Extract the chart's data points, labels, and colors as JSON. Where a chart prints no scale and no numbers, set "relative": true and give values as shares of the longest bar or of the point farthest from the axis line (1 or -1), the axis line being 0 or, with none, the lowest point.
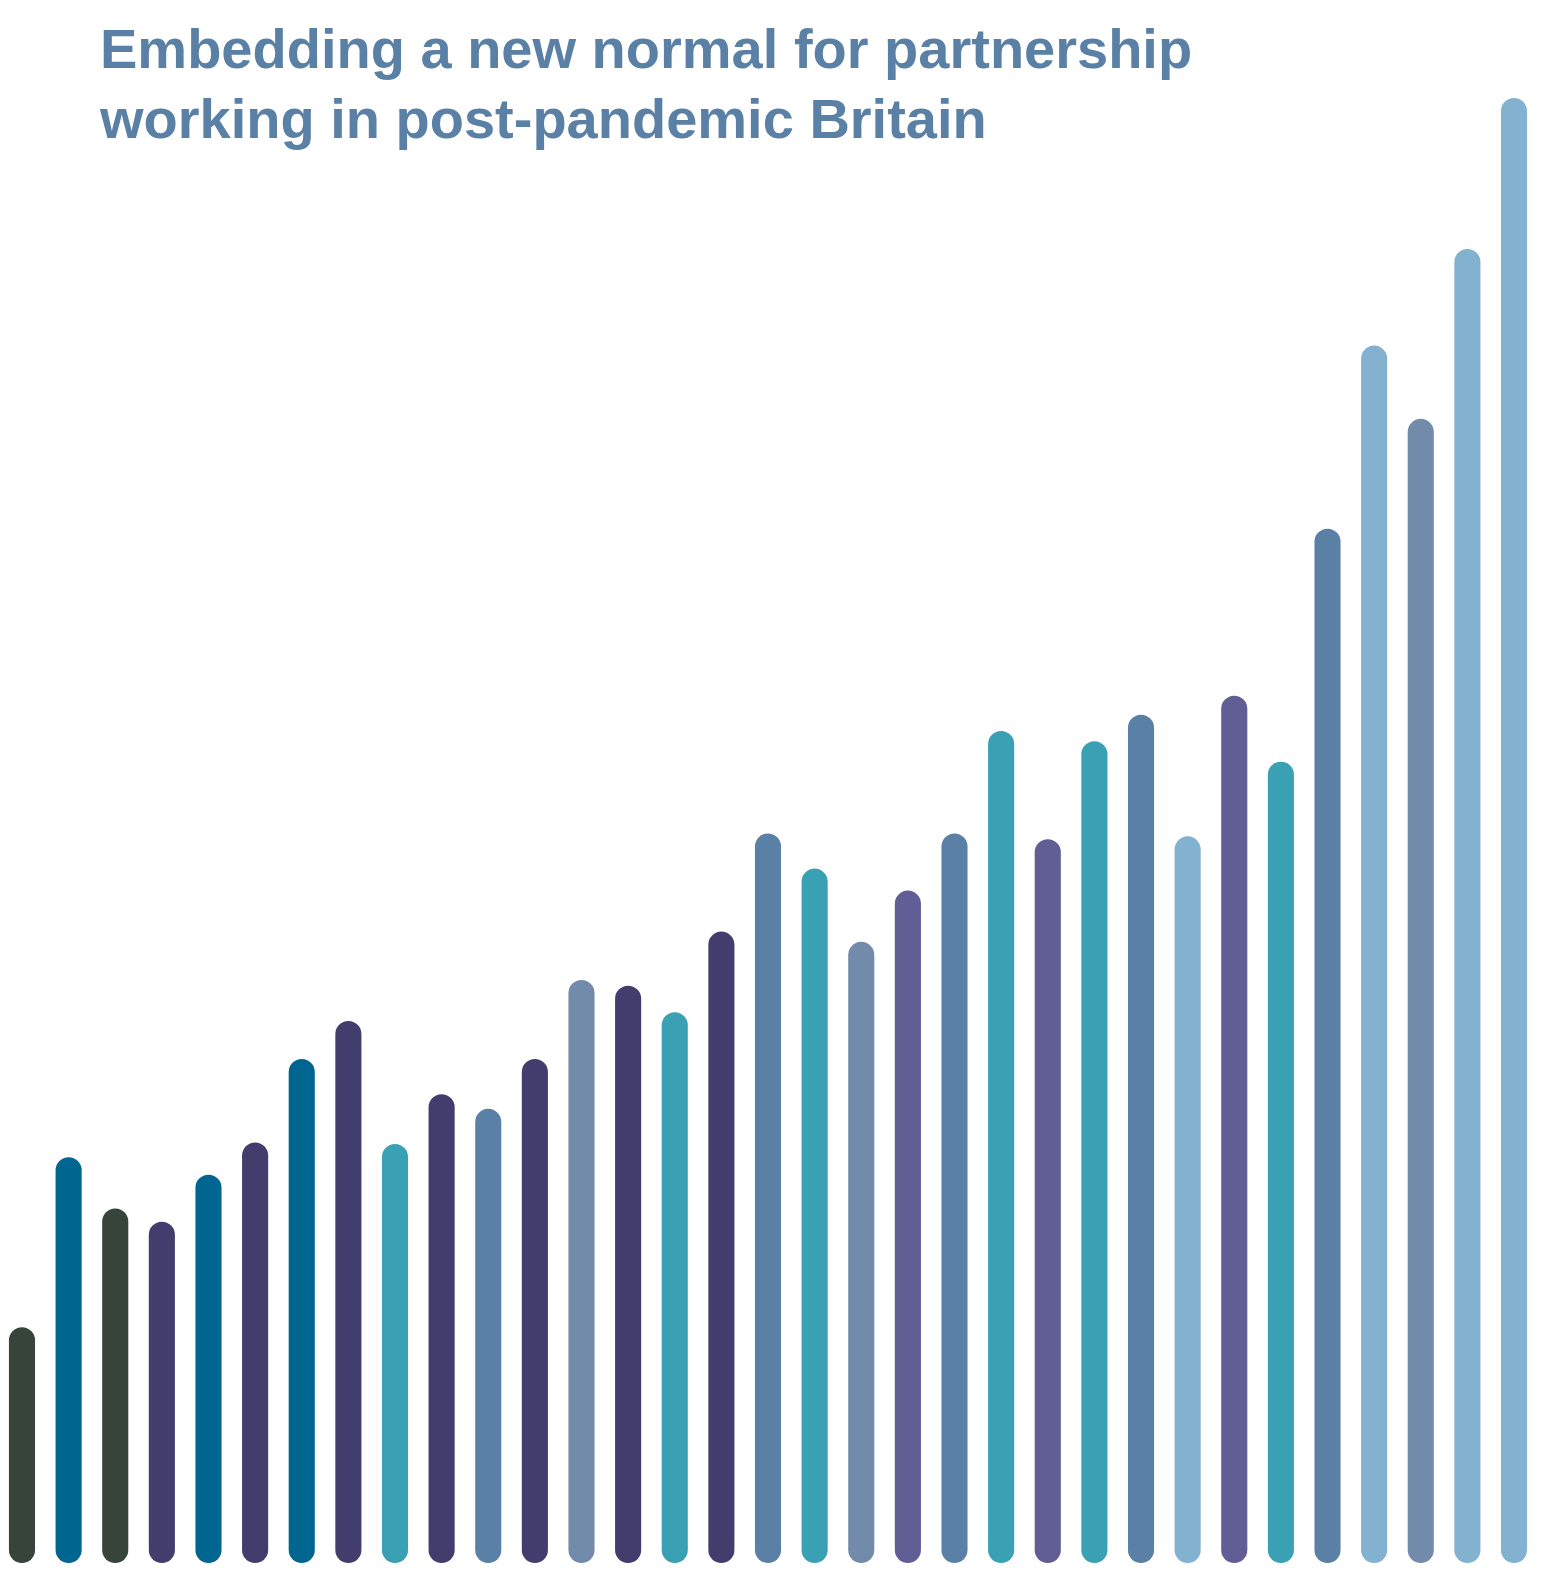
{
  "chart_data": {
    "type": "bar",
    "relative": true,
    "title": "Embedding a new normal for partnership working in post-pandemic Britain",
    "categories": [
      null,
      null,
      null,
      null,
      null,
      null,
      null,
      null,
      null,
      null,
      null,
      null,
      null,
      null,
      null,
      null,
      null,
      null,
      null,
      null,
      null,
      null,
      null,
      null,
      null,
      null,
      null,
      null,
      null,
      null,
      null,
      null,
      null
    ],
    "values": [
      0.161,
      0.277,
      0.242,
      0.233,
      0.265,
      0.287,
      0.344,
      0.37,
      0.286,
      0.32,
      0.31,
      0.344,
      0.398,
      0.394,
      0.376,
      0.431,
      0.498,
      0.474,
      0.424,
      0.459,
      0.498,
      0.568,
      0.494,
      0.561,
      0.579,
      0.496,
      0.592,
      0.547,
      0.706,
      0.831,
      0.781,
      0.897,
      1
    ],
    "colors": [
      "#36443a",
      "#00668f",
      "#36443a",
      "#433d6e",
      "#00668f",
      "#433d6e",
      "#00668f",
      "#433d6e",
      "#3aa0b3",
      "#433d6e",
      "#5a80a5",
      "#433d6e",
      "#728bab",
      "#433d6e",
      "#3aa0b3",
      "#433d6e",
      "#5a80a5",
      "#3aa0b3",
      "#728bab",
      "#615d95",
      "#5a80a5",
      "#3aa0b3",
      "#615d95",
      "#3aa0b3",
      "#5a80a5",
      "#83b1d0",
      "#615d95",
      "#3aa0b3",
      "#5a80a5",
      "#83b1d0",
      "#728bab",
      "#83b1d0",
      "#83b1d0"
    ]
  }
}
